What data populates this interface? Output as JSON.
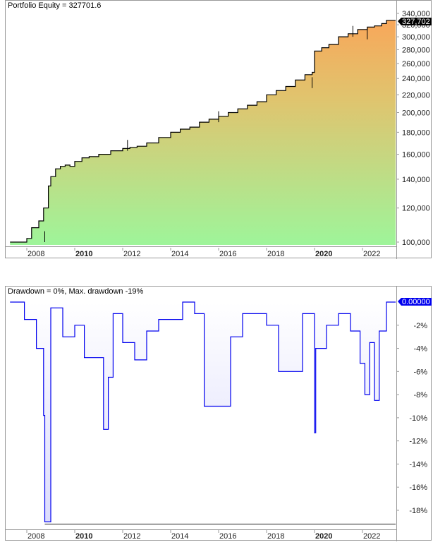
{
  "equity_panel": {
    "title": "Portfolio Equity = 327701.6",
    "last_value_label": "327,702"
  },
  "drawdown_panel": {
    "title": "Drawdown = 0%, Max. drawdown -19%",
    "last_value_label": "0.00000"
  },
  "chart_data": [
    {
      "type": "area",
      "title": "Portfolio Equity = 327701.6",
      "xlabel": "",
      "ylabel": "",
      "y_scale": "log",
      "ylim": [
        97000,
        345000
      ],
      "x_tick_labels": [
        "2008",
        "2010",
        "2012",
        "2014",
        "2016",
        "2018",
        "2020",
        "2022"
      ],
      "bold_x_ticks": [
        "2010",
        "2020"
      ],
      "y_tick_labels": [
        "340,000",
        "320,000",
        "300,000",
        "280,000",
        "260,000",
        "240,000",
        "220,000",
        "200,000",
        "180,000",
        "160,000",
        "140,000",
        "120,000",
        "100,000"
      ],
      "last_value": 327701.6,
      "gradient": {
        "bottom": "#9ef59a",
        "top": "#f7a95a"
      },
      "line_color": "#000000",
      "series": [
        {
          "name": "Portfolio Equity",
          "x": [
            2007.3,
            2008.0,
            2008.2,
            2008.5,
            2008.7,
            2008.9,
            2009.0,
            2009.2,
            2009.4,
            2009.6,
            2009.8,
            2010.0,
            2010.3,
            2010.6,
            2011.0,
            2011.5,
            2012.0,
            2012.3,
            2012.6,
            2013.0,
            2013.5,
            2014.0,
            2014.4,
            2014.8,
            2015.2,
            2015.6,
            2016.0,
            2016.4,
            2016.8,
            2017.2,
            2017.6,
            2018.0,
            2018.4,
            2018.8,
            2019.2,
            2019.6,
            2019.9,
            2020.0,
            2020.3,
            2020.6,
            2021.0,
            2021.4,
            2021.8,
            2022.2,
            2022.5,
            2022.8,
            2023.0
          ],
          "values": [
            100000,
            102000,
            108000,
            112000,
            120000,
            135000,
            142000,
            148000,
            150000,
            151000,
            150000,
            154000,
            157000,
            158000,
            160000,
            163000,
            165000,
            166000,
            167000,
            170000,
            175000,
            180000,
            183000,
            185000,
            190000,
            193000,
            196000,
            200000,
            204000,
            208000,
            212000,
            220000,
            225000,
            230000,
            238000,
            245000,
            248000,
            278000,
            283000,
            288000,
            300000,
            305000,
            312000,
            316000,
            318000,
            322000,
            327702
          ]
        }
      ]
    },
    {
      "type": "line",
      "title": "Drawdown = 0%, Max. drawdown -19%",
      "xlabel": "",
      "ylabel": "",
      "ylim": [
        -19.5,
        0
      ],
      "x_tick_labels": [
        "2008",
        "2010",
        "2012",
        "2014",
        "2016",
        "2018",
        "2020",
        "2022"
      ],
      "bold_x_ticks": [
        "2010",
        "2020"
      ],
      "y_tick_labels": [
        "-2%",
        "-4%",
        "-6%",
        "-8%",
        "-10%",
        "-12%",
        "-14%",
        "-16%",
        "-18%"
      ],
      "current_drawdown_pct": 0,
      "max_drawdown_pct": -19,
      "line_color": "#0000ee",
      "series": [
        {
          "name": "Drawdown %",
          "x": [
            2007.3,
            2007.9,
            2008.4,
            2008.7,
            2008.75,
            2009.0,
            2009.5,
            2010.0,
            2010.4,
            2011.2,
            2011.4,
            2011.6,
            2012.0,
            2012.5,
            2013.0,
            2013.5,
            2014.5,
            2015.0,
            2015.4,
            2016.5,
            2017.0,
            2018.0,
            2018.5,
            2019.5,
            2020.0,
            2020.05,
            2020.5,
            2021.0,
            2021.5,
            2021.9,
            2022.1,
            2022.3,
            2022.5,
            2022.7,
            2023.0
          ],
          "values": [
            0,
            -1.5,
            -4.0,
            -9.8,
            -19.0,
            -0.5,
            -3.0,
            -2.0,
            -4.8,
            -11.0,
            -6.5,
            -1.0,
            -3.5,
            -5.0,
            -2.5,
            -1.5,
            0,
            -1.0,
            -9.0,
            -3.0,
            -1.0,
            -2.0,
            -6.0,
            -1.0,
            -11.3,
            -4.0,
            -2.0,
            -1.0,
            -2.5,
            -5.3,
            -8.0,
            -3.5,
            -8.5,
            -2.5,
            0
          ]
        }
      ]
    }
  ]
}
